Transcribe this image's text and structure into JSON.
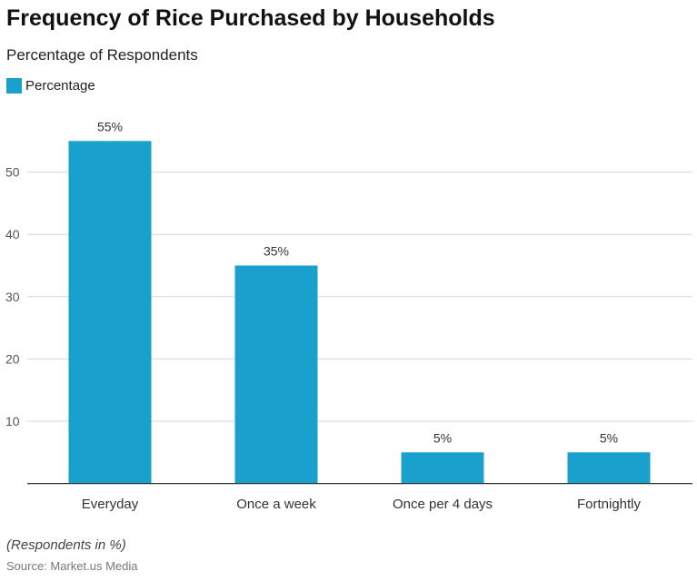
{
  "title": "Frequency of Rice Purchased by Households",
  "subtitle": "Percentage of Respondents",
  "note": "(Respondents in %)",
  "source": "Source: Market.us Media",
  "chart_data": {
    "type": "bar",
    "categories": [
      "Everyday",
      "Once a week",
      "Once per 4 days",
      "Fortnightly"
    ],
    "series": [
      {
        "name": "Percentage",
        "values": [
          55,
          35,
          5,
          5
        ],
        "labels": [
          "55%",
          "35%",
          "5%",
          "5%"
        ],
        "color": "#1aa0cd"
      }
    ],
    "yticks": [
      10,
      20,
      30,
      40,
      50
    ],
    "ylim": [
      0,
      58
    ],
    "grid": true,
    "legend": "top-left"
  }
}
